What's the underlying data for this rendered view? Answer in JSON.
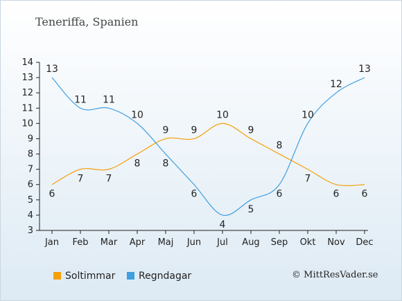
{
  "title": "Teneriffa, Spanien",
  "copyright": "© MittResVader.se",
  "chart_data": {
    "type": "line",
    "categories": [
      "Jan",
      "Feb",
      "Mar",
      "Apr",
      "Maj",
      "Jun",
      "Jul",
      "Aug",
      "Sep",
      "Okt",
      "Nov",
      "Dec"
    ],
    "ylim": [
      3,
      14
    ],
    "yticks": [
      3,
      4,
      5,
      6,
      7,
      8,
      9,
      10,
      11,
      12,
      13,
      14
    ],
    "grid": false,
    "legend_position": "bottom",
    "series": [
      {
        "name": "Soltimmar",
        "color": "#f5a00a",
        "values": [
          6,
          7,
          7,
          8,
          9,
          9,
          10,
          9,
          8,
          7,
          6,
          6
        ]
      },
      {
        "name": "Regndagar",
        "color": "#3f9fe0",
        "values": [
          13,
          11,
          11,
          10,
          8,
          6,
          4,
          5,
          6,
          10,
          12,
          13
        ]
      }
    ]
  }
}
